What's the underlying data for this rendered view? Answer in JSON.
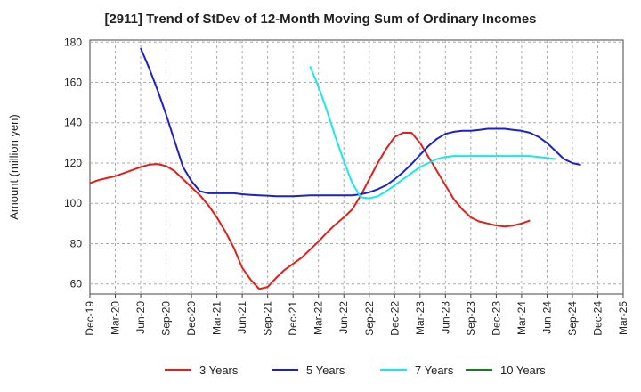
{
  "chart_data": {
    "type": "line",
    "title": "[2911]  Trend of StDev of 12-Month Moving Sum of Ordinary Incomes",
    "xlabel": "",
    "ylabel": "Amount (million yen)",
    "ylim": [
      55,
      181
    ],
    "yticks": [
      60,
      80,
      100,
      120,
      140,
      160,
      180
    ],
    "grid": "dashed",
    "legend_position": "bottom",
    "x_start": "Dec-19",
    "x_end": "Mar-25",
    "tick_labels": [
      "Dec-19",
      "Mar-20",
      "Jun-20",
      "Sep-20",
      "Dec-20",
      "Mar-21",
      "Jun-21",
      "Sep-21",
      "Dec-21",
      "Mar-22",
      "Jun-22",
      "Sep-22",
      "Dec-22",
      "Mar-23",
      "Jun-23",
      "Sep-23",
      "Dec-23",
      "Mar-24",
      "Jun-24",
      "Sep-24",
      "Dec-24",
      "Mar-25"
    ],
    "series": [
      {
        "name": "3 Years",
        "color": "#e0201b",
        "values": [
          110,
          111.5,
          112.5,
          113.5,
          115,
          116.5,
          118,
          119.2,
          119.5,
          118.5,
          116,
          112,
          108,
          104,
          99,
          93,
          86,
          78,
          68,
          62,
          57.5,
          58.5,
          63,
          67,
          70,
          73,
          77,
          81,
          85.5,
          89.5,
          93,
          97,
          104,
          112,
          120,
          127,
          133,
          135,
          135,
          130,
          123,
          116,
          109,
          102,
          97,
          93,
          91,
          90,
          89,
          88.5,
          89,
          90,
          91.5
        ],
        "start_offset": 0
      },
      {
        "name": "5 Years",
        "color": "#1b22c8",
        "values": [
          177,
          167,
          156,
          144,
          131,
          118,
          111,
          106,
          105,
          105,
          105,
          105,
          104.5,
          104.2,
          104,
          103.8,
          103.5,
          103.5,
          103.5,
          103.7,
          104,
          104,
          104,
          104,
          104,
          104,
          104.5,
          105.5,
          107,
          109,
          112,
          115.5,
          119.5,
          124,
          128.5,
          132,
          134.5,
          135.5,
          136,
          136,
          136.5,
          137,
          137,
          137,
          136.5,
          136,
          135,
          133,
          130,
          126,
          122,
          120,
          119
        ],
        "start_offset": 6
      },
      {
        "name": "7 Years",
        "color": "#19e8e8",
        "values": [
          168,
          158,
          146,
          133,
          121,
          110,
          103,
          102.5,
          103.5,
          106,
          109,
          112,
          115,
          118,
          120,
          122,
          123,
          123.5,
          123.5,
          123.5,
          123.5,
          123.5,
          123.5,
          123.5,
          123.5,
          123.5,
          123.5,
          123,
          122.5,
          122
        ],
        "start_offset": 26
      },
      {
        "name": "10 Years",
        "color": "#1f7a1f",
        "values": [],
        "start_offset": 0
      }
    ]
  }
}
